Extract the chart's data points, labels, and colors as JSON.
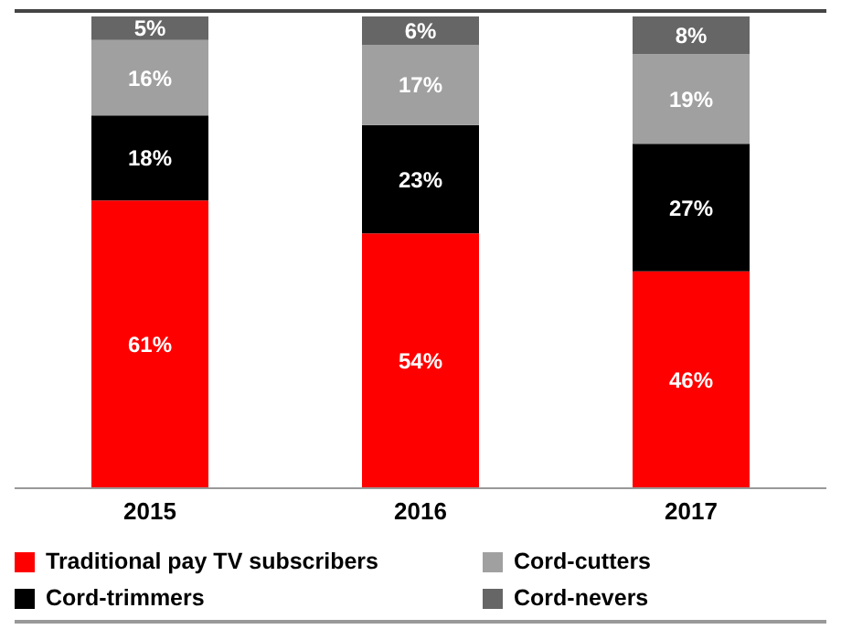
{
  "chart_data": {
    "type": "bar",
    "stacked": true,
    "legend": "bottom",
    "grid": false,
    "categories": [
      "2015",
      "2016",
      "2017"
    ],
    "series": [
      {
        "name": "Traditional pay TV subscribers",
        "color": "#ff0000",
        "values": [
          61,
          54,
          46
        ],
        "value_labels": [
          "61%",
          "54%",
          "46%"
        ]
      },
      {
        "name": "Cord-trimmers",
        "color": "#000000",
        "values": [
          18,
          23,
          27
        ],
        "value_labels": [
          "18%",
          "23%",
          "27%"
        ]
      },
      {
        "name": "Cord-cutters",
        "color": "#a0a0a0",
        "values": [
          16,
          17,
          19
        ],
        "value_labels": [
          "16%",
          "17%",
          "19%"
        ]
      },
      {
        "name": "Cord-nevers",
        "color": "#666666",
        "values": [
          5,
          6,
          8
        ],
        "value_labels": [
          "5%",
          "6%",
          "8%"
        ]
      }
    ]
  }
}
